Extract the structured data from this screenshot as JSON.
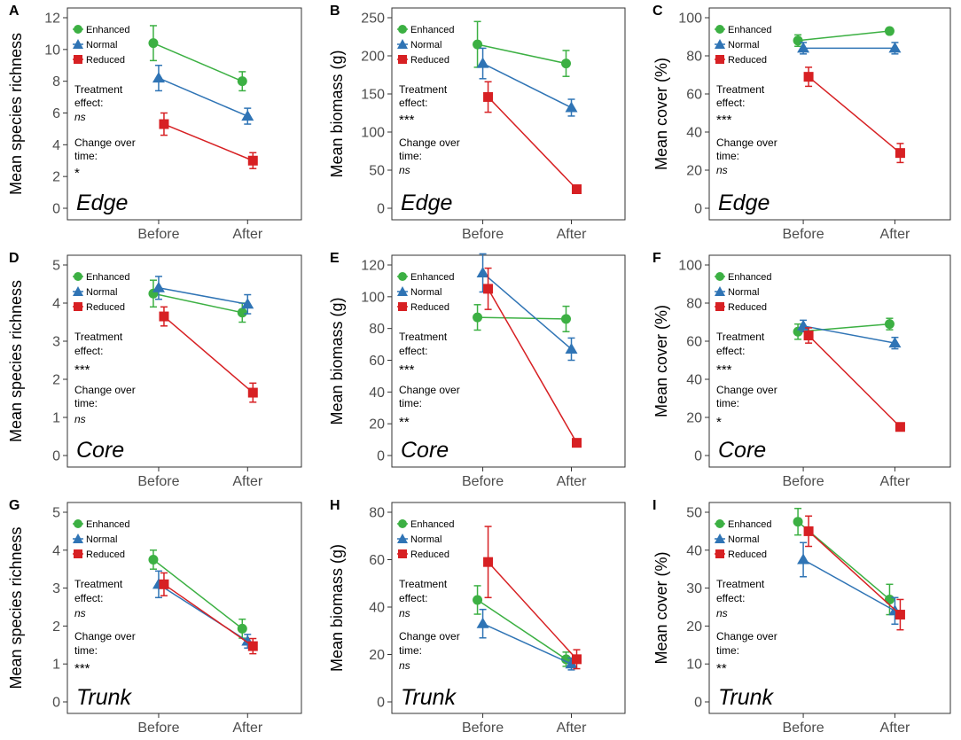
{
  "figure": {
    "colors": {
      "Enhanced": "#3cb043",
      "Normal": "#2f74b5",
      "Reduced": "#d72023"
    },
    "legend_labels": [
      "Enhanced",
      "Normal",
      "Reduced"
    ],
    "annotation_labels": {
      "treatment_line1": "Treatment",
      "treatment_line2": "effect:",
      "change_line1": "Change over",
      "change_line2": "time:"
    }
  },
  "chart_data": [
    {
      "panel": "A",
      "type": "line",
      "region": "Edge",
      "ylabel": "Mean species richness",
      "ylim": [
        0,
        12
      ],
      "yticks": [
        0,
        2,
        4,
        6,
        8,
        10,
        12
      ],
      "categories": [
        "Before",
        "After"
      ],
      "series": [
        {
          "name": "Enhanced",
          "marker": "circle",
          "values": [
            10.4,
            8.0
          ],
          "errors": [
            1.1,
            0.6
          ]
        },
        {
          "name": "Normal",
          "marker": "triangle",
          "values": [
            8.2,
            5.8
          ],
          "errors": [
            0.8,
            0.5
          ]
        },
        {
          "name": "Reduced",
          "marker": "square",
          "values": [
            5.3,
            3.0
          ],
          "errors": [
            0.7,
            0.5
          ]
        }
      ],
      "treatment_effect": "ns",
      "change_over_time": "*"
    },
    {
      "panel": "B",
      "type": "line",
      "region": "Edge",
      "ylabel": "Mean biomass (g)",
      "ylim": [
        0,
        250
      ],
      "yticks": [
        0,
        50,
        100,
        150,
        200,
        250
      ],
      "categories": [
        "Before",
        "After"
      ],
      "series": [
        {
          "name": "Enhanced",
          "marker": "circle",
          "values": [
            215,
            190
          ],
          "errors": [
            30,
            17
          ]
        },
        {
          "name": "Normal",
          "marker": "triangle",
          "values": [
            190,
            132
          ],
          "errors": [
            20,
            11
          ]
        },
        {
          "name": "Reduced",
          "marker": "square",
          "values": [
            146,
            25
          ],
          "errors": [
            20,
            3
          ]
        }
      ],
      "treatment_effect": "***",
      "change_over_time": "ns"
    },
    {
      "panel": "C",
      "type": "line",
      "region": "Edge",
      "ylabel": "Mean cover (%)",
      "ylim": [
        0,
        100
      ],
      "yticks": [
        0,
        20,
        40,
        60,
        80,
        100
      ],
      "categories": [
        "Before",
        "After"
      ],
      "series": [
        {
          "name": "Enhanced",
          "marker": "circle",
          "values": [
            88,
            93
          ],
          "errors": [
            3,
            1.5
          ]
        },
        {
          "name": "Normal",
          "marker": "triangle",
          "values": [
            84,
            84
          ],
          "errors": [
            3,
            3
          ]
        },
        {
          "name": "Reduced",
          "marker": "square",
          "values": [
            69,
            29
          ],
          "errors": [
            5,
            5
          ]
        }
      ],
      "treatment_effect": "***",
      "change_over_time": "ns"
    },
    {
      "panel": "D",
      "type": "line",
      "region": "Core",
      "ylabel": "Mean species richness",
      "ylim": [
        0,
        5
      ],
      "yticks": [
        0,
        1,
        2,
        3,
        4,
        5
      ],
      "categories": [
        "Before",
        "After"
      ],
      "series": [
        {
          "name": "Enhanced",
          "marker": "circle",
          "values": [
            4.25,
            3.75
          ],
          "errors": [
            0.35,
            0.25
          ]
        },
        {
          "name": "Normal",
          "marker": "triangle",
          "values": [
            4.4,
            3.97
          ],
          "errors": [
            0.3,
            0.25
          ]
        },
        {
          "name": "Reduced",
          "marker": "square",
          "values": [
            3.65,
            1.65
          ],
          "errors": [
            0.25,
            0.25
          ]
        }
      ],
      "treatment_effect": "***",
      "change_over_time": "ns"
    },
    {
      "panel": "E",
      "type": "line",
      "region": "Core",
      "ylabel": "Mean biomass (g)",
      "ylim": [
        0,
        120
      ],
      "yticks": [
        0,
        20,
        40,
        60,
        80,
        100,
        120
      ],
      "categories": [
        "Before",
        "After"
      ],
      "series": [
        {
          "name": "Enhanced",
          "marker": "circle",
          "values": [
            87,
            86
          ],
          "errors": [
            8,
            8
          ]
        },
        {
          "name": "Normal",
          "marker": "triangle",
          "values": [
            115,
            67
          ],
          "errors": [
            12,
            7
          ]
        },
        {
          "name": "Reduced",
          "marker": "square",
          "values": [
            105,
            8
          ],
          "errors": [
            13,
            1
          ]
        }
      ],
      "treatment_effect": "***",
      "change_over_time": "**"
    },
    {
      "panel": "F",
      "type": "line",
      "region": "Core",
      "ylabel": "Mean cover (%)",
      "ylim": [
        0,
        100
      ],
      "yticks": [
        0,
        20,
        40,
        60,
        80,
        100
      ],
      "categories": [
        "Before",
        "After"
      ],
      "series": [
        {
          "name": "Enhanced",
          "marker": "circle",
          "values": [
            65,
            69
          ],
          "errors": [
            4,
            3
          ]
        },
        {
          "name": "Normal",
          "marker": "triangle",
          "values": [
            68,
            59
          ],
          "errors": [
            3,
            3
          ]
        },
        {
          "name": "Reduced",
          "marker": "square",
          "values": [
            63,
            15
          ],
          "errors": [
            4,
            2
          ]
        }
      ],
      "treatment_effect": "***",
      "change_over_time": "*"
    },
    {
      "panel": "G",
      "type": "line",
      "region": "Trunk",
      "ylabel": "Mean species richness",
      "ylim": [
        0,
        5
      ],
      "yticks": [
        0,
        1,
        2,
        3,
        4,
        5
      ],
      "categories": [
        "Before",
        "After"
      ],
      "series": [
        {
          "name": "Enhanced",
          "marker": "circle",
          "values": [
            3.75,
            1.93
          ],
          "errors": [
            0.25,
            0.25
          ]
        },
        {
          "name": "Normal",
          "marker": "triangle",
          "values": [
            3.1,
            1.6
          ],
          "errors": [
            0.35,
            0.18
          ]
        },
        {
          "name": "Reduced",
          "marker": "square",
          "values": [
            3.1,
            1.47
          ],
          "errors": [
            0.3,
            0.2
          ]
        }
      ],
      "treatment_effect": "ns",
      "change_over_time": "***"
    },
    {
      "panel": "H",
      "type": "line",
      "region": "Trunk",
      "ylabel": "Mean biomass (g)",
      "ylim": [
        0,
        80
      ],
      "yticks": [
        0,
        20,
        40,
        60,
        80
      ],
      "categories": [
        "Before",
        "After"
      ],
      "series": [
        {
          "name": "Enhanced",
          "marker": "circle",
          "values": [
            43,
            18
          ],
          "errors": [
            6,
            3
          ]
        },
        {
          "name": "Normal",
          "marker": "triangle",
          "values": [
            33,
            16
          ],
          "errors": [
            6,
            2.5
          ]
        },
        {
          "name": "Reduced",
          "marker": "square",
          "values": [
            59,
            18
          ],
          "errors": [
            15,
            4
          ]
        }
      ],
      "treatment_effect": "ns",
      "change_over_time": "ns"
    },
    {
      "panel": "I",
      "type": "line",
      "region": "Trunk",
      "ylabel": "Mean cover (%)",
      "ylim": [
        0,
        50
      ],
      "yticks": [
        0,
        10,
        20,
        30,
        40,
        50
      ],
      "categories": [
        "Before",
        "After"
      ],
      "series": [
        {
          "name": "Enhanced",
          "marker": "circle",
          "values": [
            47.5,
            27
          ],
          "errors": [
            3.5,
            4
          ]
        },
        {
          "name": "Normal",
          "marker": "triangle",
          "values": [
            37.5,
            24
          ],
          "errors": [
            4.5,
            3.5
          ]
        },
        {
          "name": "Reduced",
          "marker": "square",
          "values": [
            45,
            23
          ],
          "errors": [
            4,
            4
          ]
        }
      ],
      "treatment_effect": "ns",
      "change_over_time": "**"
    }
  ]
}
